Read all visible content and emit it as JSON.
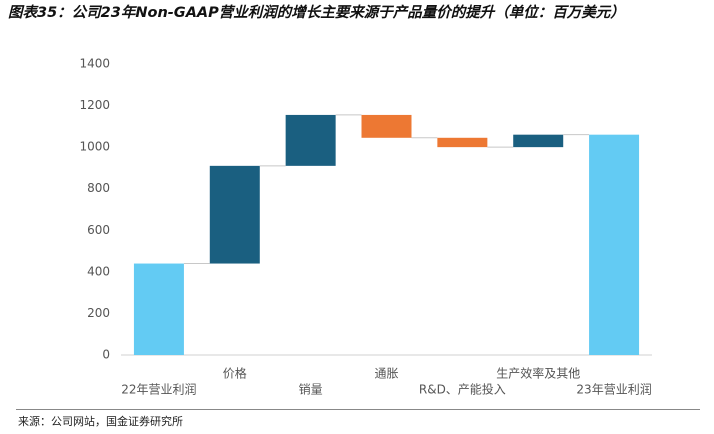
{
  "chart_data": {
    "type": "waterfall",
    "title": "图表35：公司23年Non-GAAP营业利润的增长主要来源于产品量价的提升（单位：百万美元）",
    "categories": [
      "22年营业利润",
      "价格",
      "销量",
      "通胀",
      "R&D、产能投入",
      "生产效率及其他",
      "23年营业利润"
    ],
    "values": [
      440,
      470,
      245,
      -110,
      -45,
      60,
      1060
    ],
    "measure": [
      "absolute",
      "relative",
      "relative",
      "relative",
      "relative",
      "relative",
      "absolute"
    ],
    "colors": {
      "total": "#63cbf3",
      "increase": "#1a5f80",
      "decrease": "#ed7833"
    },
    "ylim": [
      0,
      1400
    ],
    "yticks": [
      0,
      200,
      400,
      600,
      800,
      1000,
      1200,
      1400
    ],
    "source": "来源：公司网站，国金证券研究所"
  }
}
